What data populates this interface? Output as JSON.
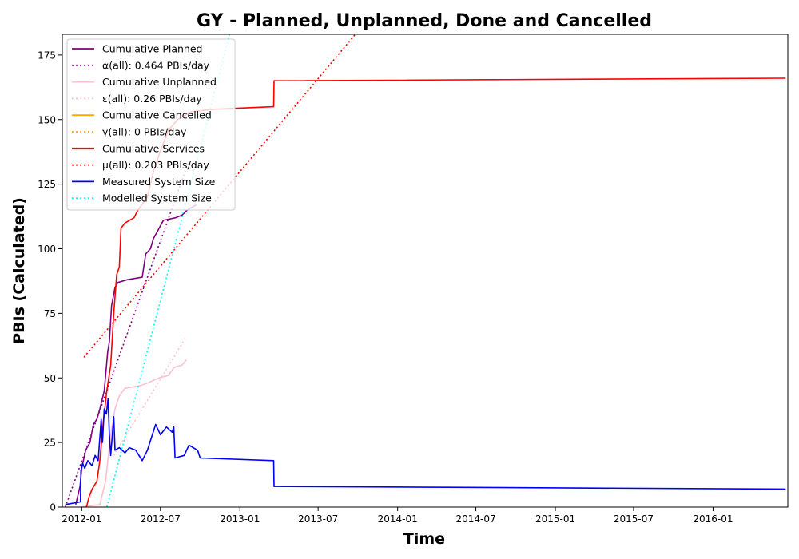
{
  "chart_data": {
    "type": "line",
    "title": "GY - Planned, Unplanned, Done  and Cancelled",
    "xlabel": "Time",
    "ylabel": "PBIs (Calculated)",
    "x_axis_type": "date",
    "xlim": [
      "2011-11-17",
      "2016-06-22"
    ],
    "ylim": [
      0,
      183
    ],
    "x_ticks": [
      "2012-01",
      "2012-07",
      "2013-01",
      "2013-07",
      "2014-01",
      "2014-07",
      "2015-01",
      "2015-07",
      "2016-01"
    ],
    "x_tick_dates": [
      "2012-01-01",
      "2012-07-01",
      "2013-01-01",
      "2013-07-01",
      "2014-01-01",
      "2014-07-01",
      "2015-01-01",
      "2015-07-01",
      "2016-01-01"
    ],
    "y_ticks": [
      0,
      25,
      50,
      75,
      100,
      125,
      150,
      175
    ],
    "grid": false,
    "legend_position": "top-left",
    "series": [
      {
        "name": "Cumulative Planned",
        "color": "#800080",
        "style": "solid",
        "points": [
          [
            "2011-12-18",
            1
          ],
          [
            "2011-12-28",
            8
          ],
          [
            "2012-01-01",
            15
          ],
          [
            "2012-01-10",
            22
          ],
          [
            "2012-01-20",
            25
          ],
          [
            "2012-01-28",
            32
          ],
          [
            "2012-02-05",
            34
          ],
          [
            "2012-02-12",
            38
          ],
          [
            "2012-02-22",
            45
          ],
          [
            "2012-03-01",
            60
          ],
          [
            "2012-03-05",
            64
          ],
          [
            "2012-03-10",
            78
          ],
          [
            "2012-03-18",
            85
          ],
          [
            "2012-03-25",
            87
          ],
          [
            "2012-04-15",
            88
          ],
          [
            "2012-05-20",
            89
          ],
          [
            "2012-05-28",
            98
          ],
          [
            "2012-06-08",
            100
          ],
          [
            "2012-06-15",
            104
          ],
          [
            "2012-06-25",
            107
          ],
          [
            "2012-07-08",
            111
          ],
          [
            "2012-08-05",
            112
          ],
          [
            "2012-08-20",
            113
          ],
          [
            "2012-09-01",
            115
          ],
          [
            "2012-09-22",
            117
          ]
        ]
      },
      {
        "name": "α(all): 0.464 PBIs/day",
        "color": "#800080",
        "style": "dotted",
        "points": [
          [
            "2011-11-24",
            0
          ],
          [
            "2012-09-03",
            133
          ]
        ]
      },
      {
        "name": "Cumulative Unplanned",
        "color": "#ffc0cb",
        "style": "solid",
        "points": [
          [
            "2011-12-28",
            0
          ],
          [
            "2012-02-12",
            1
          ],
          [
            "2012-02-25",
            10
          ],
          [
            "2012-03-08",
            28
          ],
          [
            "2012-03-18",
            38
          ],
          [
            "2012-03-28",
            43
          ],
          [
            "2012-04-10",
            46
          ],
          [
            "2012-05-15",
            47
          ],
          [
            "2012-06-01",
            48
          ],
          [
            "2012-06-28",
            50
          ],
          [
            "2012-07-20",
            51
          ],
          [
            "2012-08-01",
            54
          ],
          [
            "2012-08-20",
            55
          ],
          [
            "2012-08-30",
            57
          ]
        ]
      },
      {
        "name": "ε(all): 0.26 PBIs/day",
        "color": "#ffc0cb",
        "style": "dotted",
        "points": [
          [
            "2012-03-15",
            20
          ],
          [
            "2012-08-30",
            66
          ]
        ]
      },
      {
        "name": "Cumulative Cancelled",
        "color": "#ffa500",
        "style": "solid",
        "points": []
      },
      {
        "name": "γ(all): 0 PBIs/day",
        "color": "#ffa500",
        "style": "dotted",
        "points": []
      },
      {
        "name": "Cumulative Services",
        "color": "#ff0000",
        "style": "solid",
        "points": [
          [
            "2012-01-12",
            0
          ],
          [
            "2012-01-18",
            4
          ],
          [
            "2012-01-25",
            7
          ],
          [
            "2012-02-05",
            10
          ],
          [
            "2012-02-12",
            18
          ],
          [
            "2012-02-20",
            33
          ],
          [
            "2012-02-28",
            45
          ],
          [
            "2012-03-08",
            55
          ],
          [
            "2012-03-15",
            75
          ],
          [
            "2012-03-22",
            90
          ],
          [
            "2012-03-28",
            93
          ],
          [
            "2012-04-01",
            108
          ],
          [
            "2012-04-10",
            110
          ],
          [
            "2012-05-01",
            112
          ],
          [
            "2012-05-10",
            115
          ],
          [
            "2012-06-01",
            120
          ],
          [
            "2012-06-15",
            130
          ],
          [
            "2012-07-01",
            138
          ],
          [
            "2012-07-20",
            146
          ],
          [
            "2012-08-10",
            150
          ],
          [
            "2012-09-10",
            153
          ],
          [
            "2012-11-01",
            154
          ],
          [
            "2013-03-20",
            155
          ],
          [
            "2013-03-21",
            165
          ],
          [
            "2016-06-17",
            166
          ]
        ]
      },
      {
        "name": "μ(all): 0.203 PBIs/day",
        "color": "#ff0000",
        "style": "dotted",
        "points": [
          [
            "2012-01-06",
            58
          ],
          [
            "2013-09-30",
            184
          ]
        ]
      },
      {
        "name": "Measured System Size",
        "color": "#0000ff",
        "style": "solid",
        "points": [
          [
            "2011-11-24",
            1
          ],
          [
            "2011-12-29",
            2
          ],
          [
            "2011-12-30",
            14
          ],
          [
            "2012-01-03",
            17
          ],
          [
            "2012-01-08",
            15
          ],
          [
            "2012-01-15",
            18
          ],
          [
            "2012-01-25",
            16
          ],
          [
            "2012-02-01",
            20
          ],
          [
            "2012-02-08",
            18
          ],
          [
            "2012-02-15",
            34
          ],
          [
            "2012-02-18",
            25
          ],
          [
            "2012-02-22",
            38
          ],
          [
            "2012-02-27",
            36
          ],
          [
            "2012-03-02",
            42
          ],
          [
            "2012-03-05",
            28
          ],
          [
            "2012-03-08",
            20
          ],
          [
            "2012-03-15",
            35
          ],
          [
            "2012-03-18",
            22
          ],
          [
            "2012-03-28",
            23
          ],
          [
            "2012-04-10",
            21
          ],
          [
            "2012-04-20",
            23
          ],
          [
            "2012-05-05",
            22
          ],
          [
            "2012-05-20",
            18
          ],
          [
            "2012-06-01",
            22
          ],
          [
            "2012-06-20",
            32
          ],
          [
            "2012-07-01",
            28
          ],
          [
            "2012-07-15",
            31
          ],
          [
            "2012-07-28",
            29
          ],
          [
            "2012-08-01",
            31
          ],
          [
            "2012-08-04",
            19
          ],
          [
            "2012-08-25",
            20
          ],
          [
            "2012-09-05",
            24
          ],
          [
            "2012-09-25",
            22
          ],
          [
            "2012-10-01",
            19
          ],
          [
            "2013-03-20",
            18
          ],
          [
            "2013-03-21",
            8
          ],
          [
            "2016-06-17",
            7
          ]
        ]
      },
      {
        "name": "Modelled System Size",
        "color": "#00ffff",
        "style": "dotted",
        "points": [
          [
            "2012-02-28",
            0
          ],
          [
            "2012-12-08",
            183
          ]
        ]
      }
    ]
  }
}
